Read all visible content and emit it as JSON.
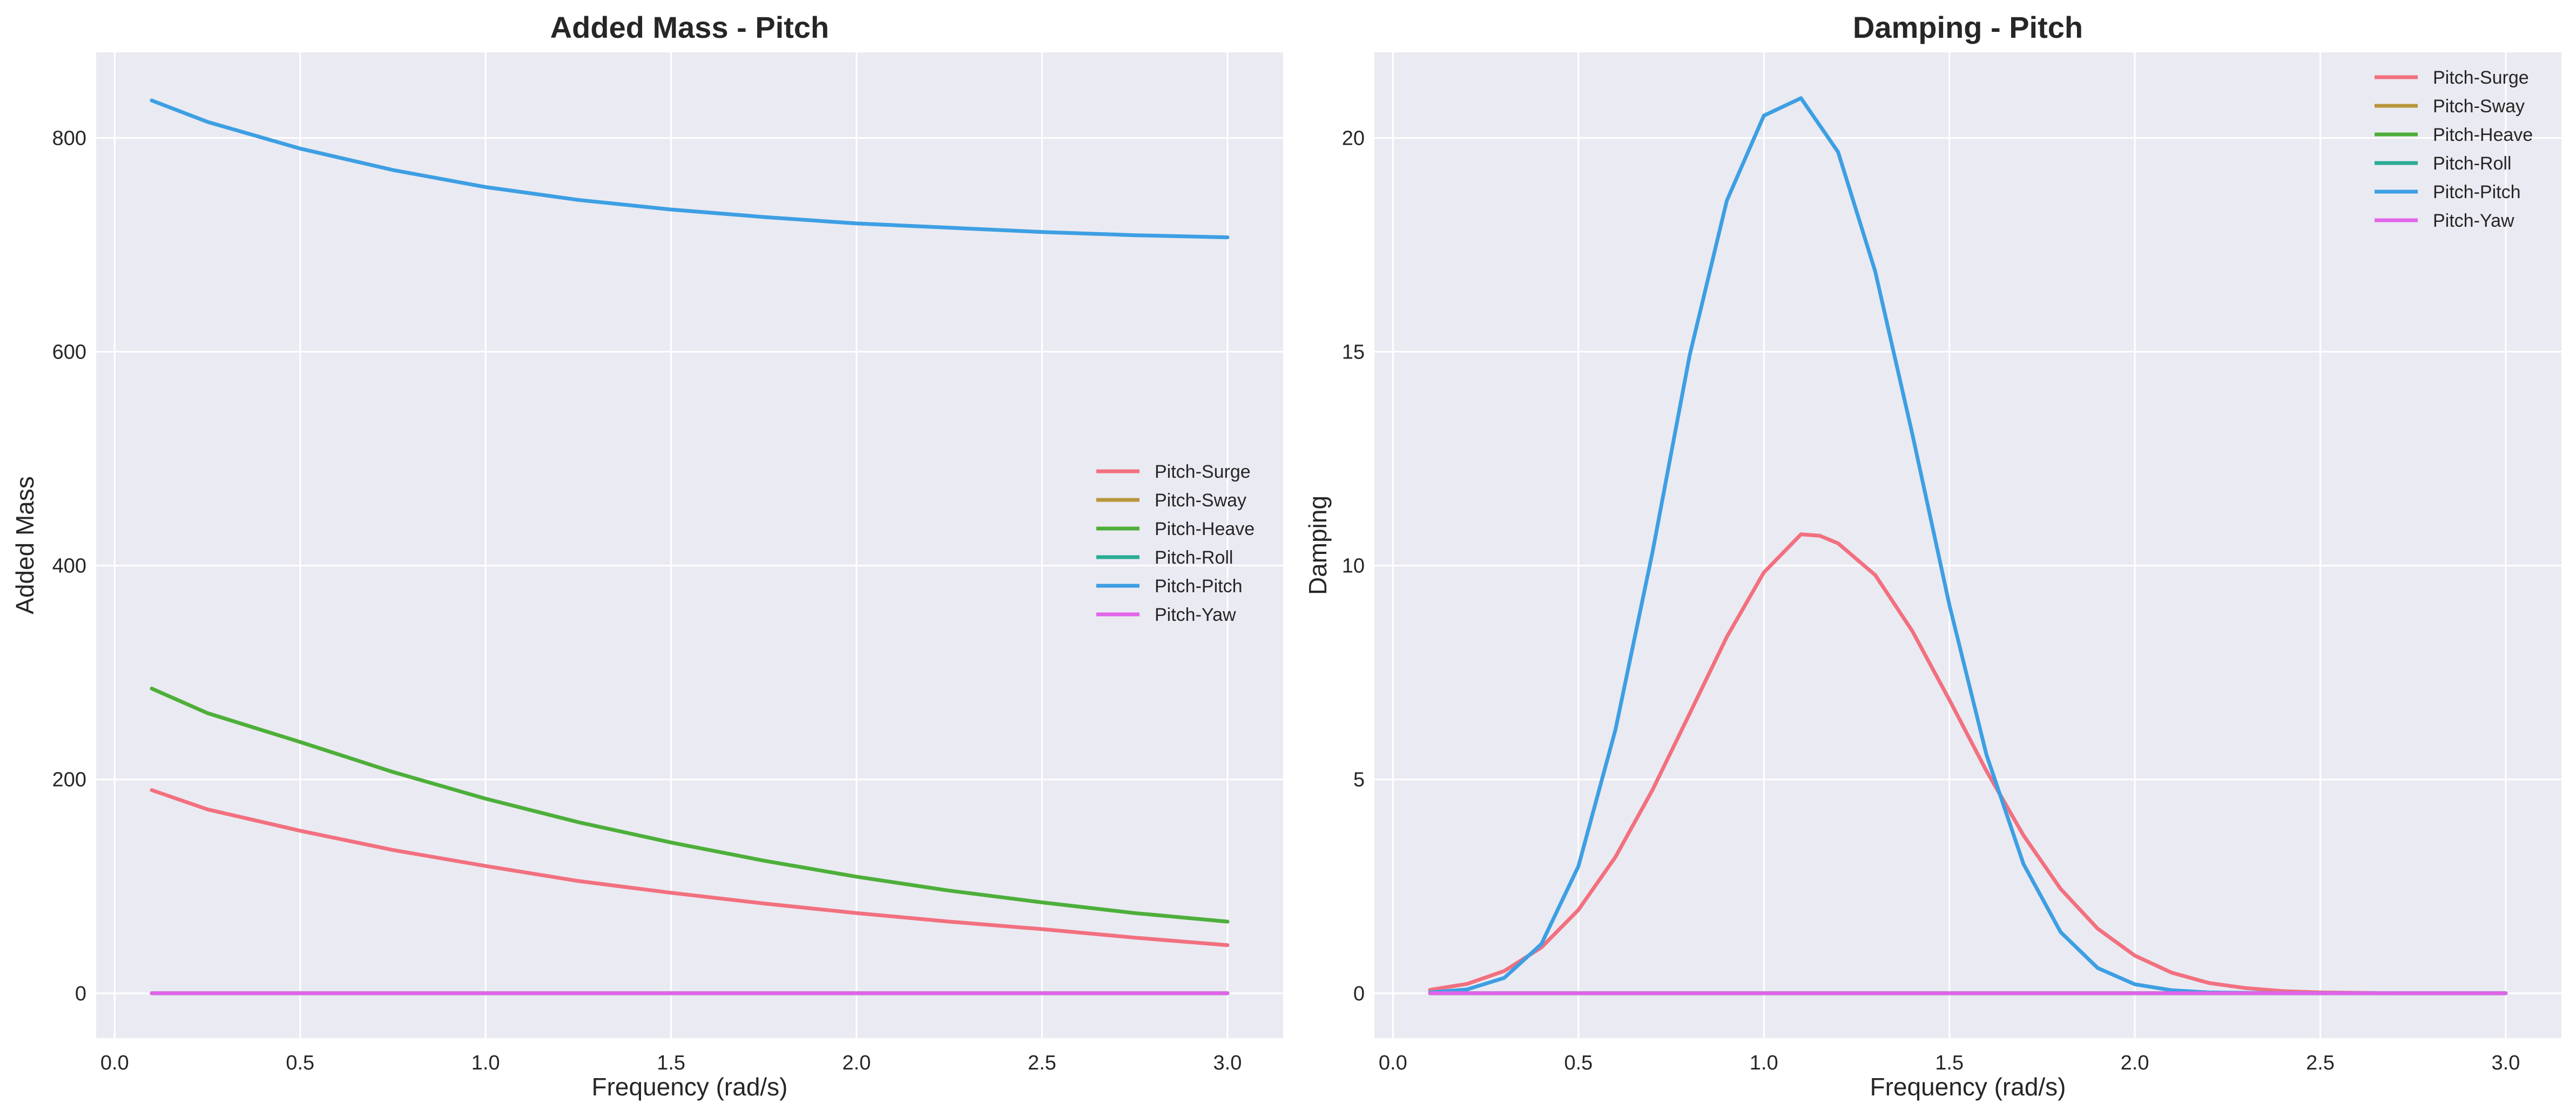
{
  "chart_data": [
    {
      "type": "line",
      "title": "Added Mass - Pitch",
      "xlabel": "Frequency (rad/s)",
      "ylabel": "Added Mass",
      "xlim": [
        -0.05,
        3.15
      ],
      "ylim": [
        -42,
        880
      ],
      "xticks": [
        0.0,
        0.5,
        1.0,
        1.5,
        2.0,
        2.5,
        3.0
      ],
      "xtick_labels": [
        "0.0",
        "0.5",
        "1.0",
        "1.5",
        "2.0",
        "2.5",
        "3.0"
      ],
      "yticks": [
        0,
        200,
        400,
        600,
        800
      ],
      "ytick_labels": [
        "0",
        "200",
        "400",
        "600",
        "800"
      ],
      "grid": true,
      "legend": "center-right",
      "series": [
        {
          "name": "Pitch-Surge",
          "color": "#f2707f",
          "x": [
            0.1,
            0.25,
            0.5,
            0.75,
            1.0,
            1.25,
            1.5,
            1.75,
            2.0,
            2.25,
            2.5,
            2.75,
            3.0
          ],
          "values": [
            190,
            172,
            152,
            134,
            119,
            105,
            94,
            84,
            75,
            67,
            60,
            52,
            45
          ]
        },
        {
          "name": "Pitch-Sway",
          "color": "#b8963a",
          "x": [
            0.1,
            3.0
          ],
          "values": [
            0,
            0
          ]
        },
        {
          "name": "Pitch-Heave",
          "color": "#4daf3a",
          "x": [
            0.1,
            0.25,
            0.5,
            0.75,
            1.0,
            1.25,
            1.5,
            1.75,
            2.0,
            2.25,
            2.5,
            2.75,
            3.0
          ],
          "values": [
            285,
            262,
            235,
            207,
            182,
            160,
            141,
            124,
            109,
            96,
            85,
            75,
            67
          ]
        },
        {
          "name": "Pitch-Roll",
          "color": "#2aab94",
          "x": [
            0.1,
            3.0
          ],
          "values": [
            0,
            0
          ]
        },
        {
          "name": "Pitch-Pitch",
          "color": "#3d9fe3",
          "x": [
            0.1,
            0.25,
            0.5,
            0.75,
            1.0,
            1.25,
            1.5,
            1.75,
            2.0,
            2.25,
            2.5,
            2.75,
            3.0
          ],
          "values": [
            835,
            815,
            790,
            770,
            754,
            742,
            733,
            726,
            720,
            716,
            712,
            709,
            707
          ]
        },
        {
          "name": "Pitch-Yaw",
          "color": "#e065e8",
          "x": [
            0.1,
            3.0
          ],
          "values": [
            0,
            0
          ]
        }
      ]
    },
    {
      "type": "line",
      "title": "Damping - Pitch",
      "xlabel": "Frequency (rad/s)",
      "ylabel": "Damping",
      "xlim": [
        -0.05,
        3.15
      ],
      "ylim": [
        -1.05,
        22.0
      ],
      "xticks": [
        0.0,
        0.5,
        1.0,
        1.5,
        2.0,
        2.5,
        3.0
      ],
      "xtick_labels": [
        "0.0",
        "0.5",
        "1.0",
        "1.5",
        "2.0",
        "2.5",
        "3.0"
      ],
      "yticks": [
        0,
        5,
        10,
        15,
        20
      ],
      "ytick_labels": [
        "0",
        "5",
        "10",
        "15",
        "20"
      ],
      "grid": true,
      "legend": "top-right",
      "series": [
        {
          "name": "Pitch-Surge",
          "color": "#f2707f",
          "x": [
            0.1,
            0.2,
            0.3,
            0.4,
            0.5,
            0.6,
            0.7,
            0.8,
            0.9,
            1.0,
            1.1,
            1.15,
            1.2,
            1.3,
            1.4,
            1.5,
            1.6,
            1.7,
            1.8,
            1.9,
            2.0,
            2.1,
            2.2,
            2.3,
            2.4,
            2.5,
            2.7,
            3.0
          ],
          "values": [
            0.08,
            0.22,
            0.52,
            1.07,
            1.95,
            3.19,
            4.76,
            6.54,
            8.33,
            9.84,
            10.73,
            10.7,
            10.52,
            9.78,
            8.47,
            6.86,
            5.2,
            3.69,
            2.44,
            1.51,
            0.88,
            0.48,
            0.24,
            0.12,
            0.05,
            0.02,
            0.0,
            0.0
          ]
        },
        {
          "name": "Pitch-Sway",
          "color": "#b8963a",
          "x": [
            0.1,
            3.0
          ],
          "values": [
            0,
            0
          ]
        },
        {
          "name": "Pitch-Heave",
          "color": "#4daf3a",
          "x": [
            0.1,
            3.0
          ],
          "values": [
            0,
            0
          ]
        },
        {
          "name": "Pitch-Roll",
          "color": "#2aab94",
          "x": [
            0.1,
            3.0
          ],
          "values": [
            0,
            0
          ]
        },
        {
          "name": "Pitch-Pitch",
          "color": "#3d9fe3",
          "x": [
            0.1,
            0.2,
            0.3,
            0.4,
            0.5,
            0.6,
            0.7,
            0.8,
            0.9,
            1.0,
            1.1,
            1.2,
            1.3,
            1.4,
            1.5,
            1.6,
            1.7,
            1.8,
            1.9,
            2.0,
            2.1,
            2.2,
            2.4,
            2.6,
            3.0
          ],
          "values": [
            0.02,
            0.09,
            0.36,
            1.15,
            2.97,
            6.17,
            10.33,
            14.92,
            18.53,
            20.52,
            20.93,
            19.67,
            16.88,
            13.08,
            9.08,
            5.58,
            3.02,
            1.43,
            0.59,
            0.21,
            0.07,
            0.02,
            0.0,
            0.0,
            0.0
          ]
        },
        {
          "name": "Pitch-Yaw",
          "color": "#e065e8",
          "x": [
            0.1,
            3.0
          ],
          "values": [
            0,
            0
          ]
        }
      ]
    }
  ]
}
